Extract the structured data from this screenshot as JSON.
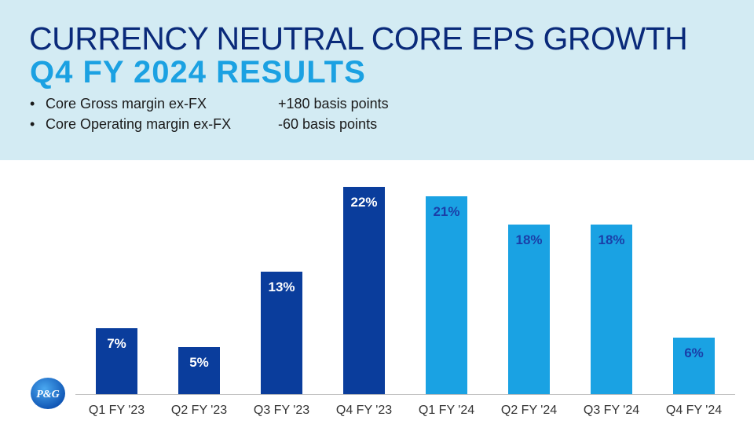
{
  "header": {
    "title_line1": "CURRENCY NEUTRAL CORE EPS GROWTH",
    "title_line2": "Q4 FY 2024 RESULTS",
    "bullets": [
      {
        "label": "Core Gross margin  ex-FX",
        "value": "+180 basis points"
      },
      {
        "label": "Core Operating  margin  ex-FX",
        "value": "-60 basis points"
      }
    ]
  },
  "logo": {
    "text": "P&G"
  },
  "colors": {
    "dark_blue": "#0a3d9c",
    "light_blue": "#1aa2e3",
    "dark_label": "#ffffff",
    "light_label": "#1a3fa8"
  },
  "chart_data": {
    "type": "bar",
    "categories": [
      "Q1 FY '23",
      "Q2 FY '23",
      "Q3 FY '23",
      "Q4 FY '23",
      "Q1 FY '24",
      "Q2 FY '24",
      "Q3 FY '24",
      "Q4 FY '24"
    ],
    "values": [
      7,
      5,
      13,
      22,
      21,
      18,
      18,
      6
    ],
    "data_labels": [
      "7%",
      "5%",
      "13%",
      "22%",
      "21%",
      "18%",
      "18%",
      "6%"
    ],
    "bar_colors": [
      "#0a3d9c",
      "#0a3d9c",
      "#0a3d9c",
      "#0a3d9c",
      "#1aa2e3",
      "#1aa2e3",
      "#1aa2e3",
      "#1aa2e3"
    ],
    "unit": "%",
    "ylim": [
      0,
      24
    ],
    "grid": false,
    "legend": "none"
  }
}
